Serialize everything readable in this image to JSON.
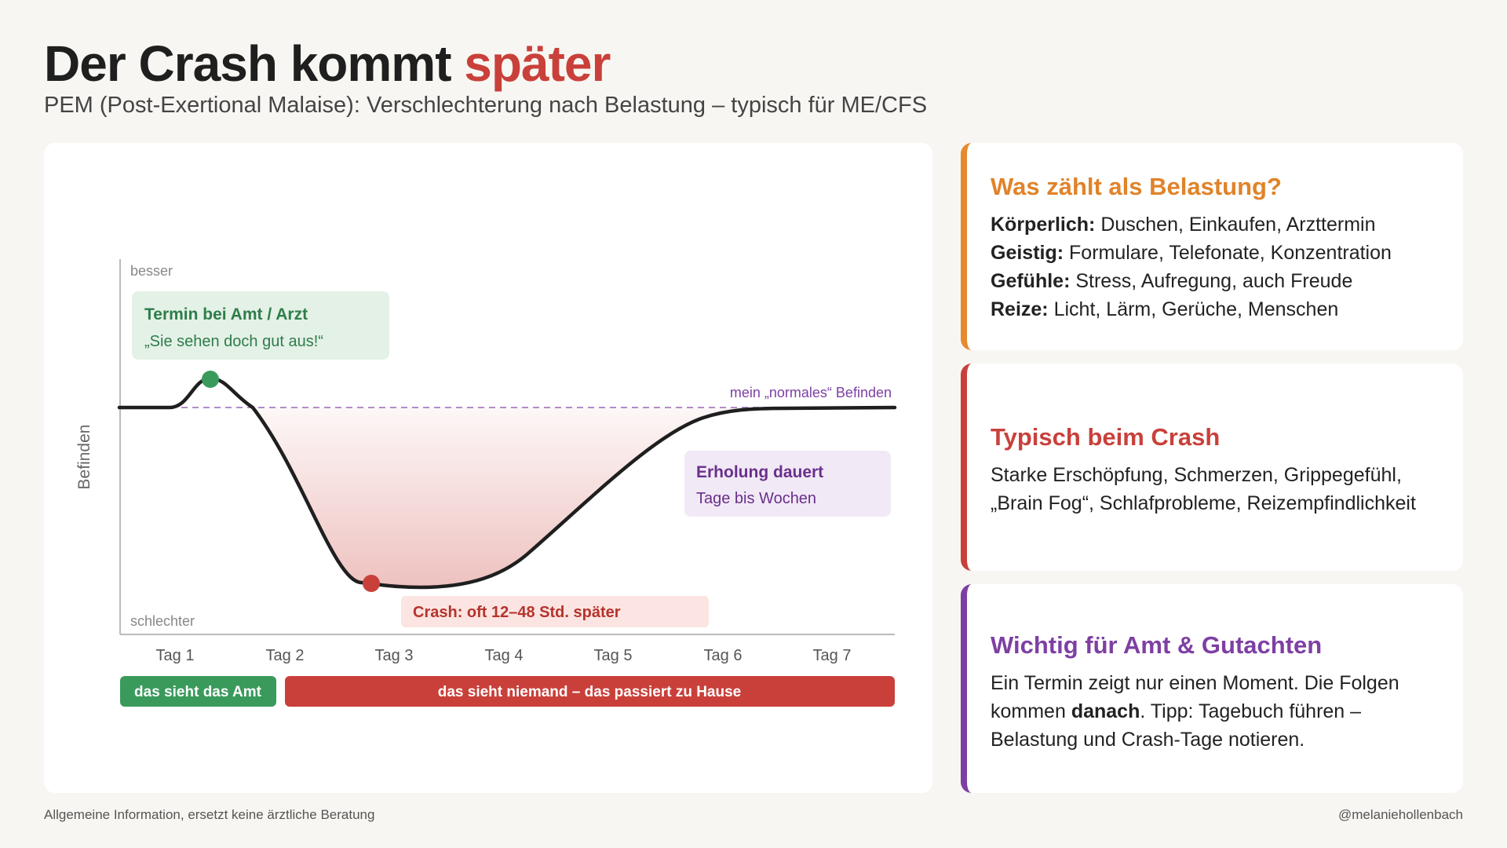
{
  "header": {
    "title_main": "Der Crash kommt",
    "title_accent": "später",
    "subtitle": "PEM (Post-Exertional Malaise): Verschlechterung nach Belastung – typisch für ME/CFS"
  },
  "diagram": {
    "ylabel": "Befinden",
    "y_top": "besser",
    "y_bottom": "schlechter",
    "baseline_label": "mein „normales“ Befinden",
    "days": [
      "Tag 1",
      "Tag 2",
      "Tag 3",
      "Tag 4",
      "Tag 5",
      "Tag 6",
      "Tag 7"
    ],
    "callout_appointment": {
      "title": "Termin bei Amt / Arzt",
      "text": "„Sie sehen doch gut aus!“"
    },
    "callout_recovery": {
      "title": "Erholung dauert",
      "text": "Tage bis Wochen"
    },
    "callout_crash": "Crash: oft 12–48 Std. später",
    "band_visible": "das sieht das Amt",
    "band_hidden": "das sieht niemand – das passiert zu Hause",
    "colors": {
      "green": "#3a9a5c",
      "red": "#c9403a",
      "purple": "#7e3fa3",
      "orange": "#e0832a"
    }
  },
  "cards": {
    "load": {
      "title": "Was zählt als Belastung?",
      "rows": [
        {
          "label": "Körperlich:",
          "text": "Duschen, Einkaufen, Arzttermin"
        },
        {
          "label": "Geistig:",
          "text": "Formulare, Telefonate, Konzentration"
        },
        {
          "label": "Gefühle:",
          "text": "Stress, Aufregung, auch Freude"
        },
        {
          "label": "Reize:",
          "text": "Licht, Lärm, Gerüche, Menschen"
        }
      ]
    },
    "crash": {
      "title": "Typisch beim Crash",
      "line1": "Starke Erschöpfung, Schmerzen, Grippegefühl,",
      "line2": "„Brain Fog“, Schlafprobleme, Reizempfindlichkeit"
    },
    "important": {
      "title": "Wichtig für Amt & Gutachten",
      "line1": "Ein Termin zeigt nur einen Moment. Die Folgen",
      "line2_pre": "kommen",
      "line2_bold": "danach",
      "line2_post": ". Tipp: Tagebuch führen –",
      "line3": "Belastung und Crash-Tage notieren."
    }
  },
  "footer": {
    "left": "Allgemeine Information, ersetzt keine ärztliche Beratung",
    "right": "@melaniehollenbach"
  }
}
